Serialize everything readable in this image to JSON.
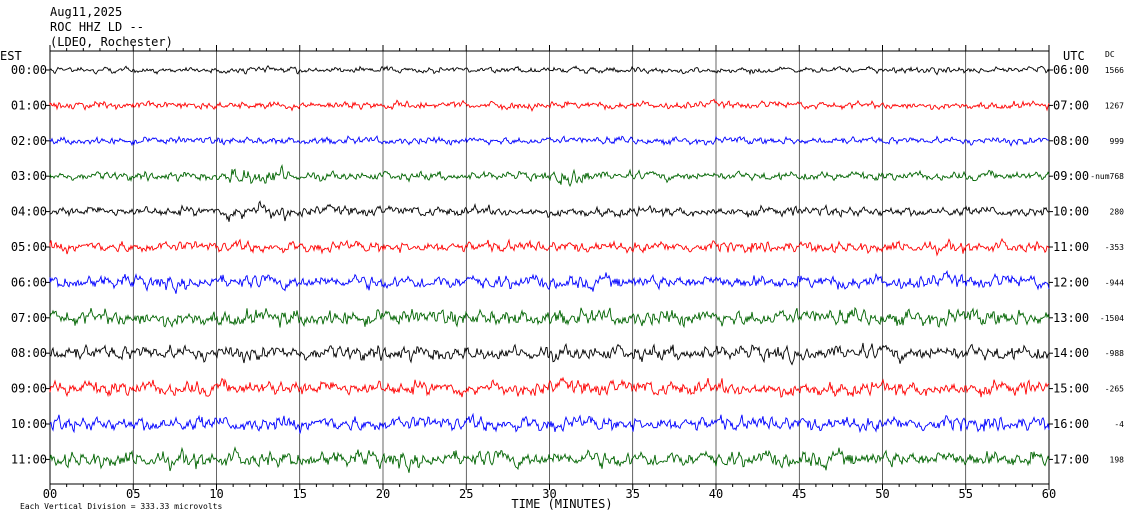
{
  "header": {
    "date": "Aug11,2025",
    "station": "ROC HHZ LD --",
    "network": "(LDEO, Rochester)"
  },
  "chart_data": {
    "type": "line",
    "title": "",
    "left_axis_label": "EST",
    "right_axis_label": "UTC",
    "dc_label": "DC",
    "xlabel": "TIME (MINUTES)",
    "xlim": [
      0,
      60
    ],
    "x_ticks": [
      "00",
      "05",
      "10",
      "15",
      "20",
      "25",
      "30",
      "35",
      "40",
      "45",
      "50",
      "55",
      "60"
    ],
    "footer": "Each Vertical Division = 333.33 microvolts",
    "trace_colors": [
      "#000000",
      "#ff0000",
      "#0000ff",
      "#006400"
    ],
    "rows": [
      {
        "est": "00:00",
        "utc": "06:00",
        "dc": "1566"
      },
      {
        "est": "01:00",
        "utc": "07:00",
        "dc": "1267"
      },
      {
        "est": "02:00",
        "utc": "08:00",
        "dc": "999"
      },
      {
        "est": "03:00",
        "utc": "09:00",
        "dc": "-num768"
      },
      {
        "est": "04:00",
        "utc": "10:00",
        "dc": "280"
      },
      {
        "est": "05:00",
        "utc": "11:00",
        "dc": "-353"
      },
      {
        "est": "06:00",
        "utc": "12:00",
        "dc": "-944"
      },
      {
        "est": "07:00",
        "utc": "13:00",
        "dc": "-1504"
      },
      {
        "est": "08:00",
        "utc": "14:00",
        "dc": "-988"
      },
      {
        "est": "09:00",
        "utc": "15:00",
        "dc": "-265"
      },
      {
        "est": "10:00",
        "utc": "16:00",
        "dc": "-4"
      },
      {
        "est": "11:00",
        "utc": "17:00",
        "dc": "198"
      }
    ],
    "trace_amplitude_divisions": [
      0.25,
      0.3,
      0.3,
      0.35,
      0.4,
      0.45,
      0.55,
      0.65,
      0.6,
      0.6,
      0.6,
      0.65
    ]
  }
}
